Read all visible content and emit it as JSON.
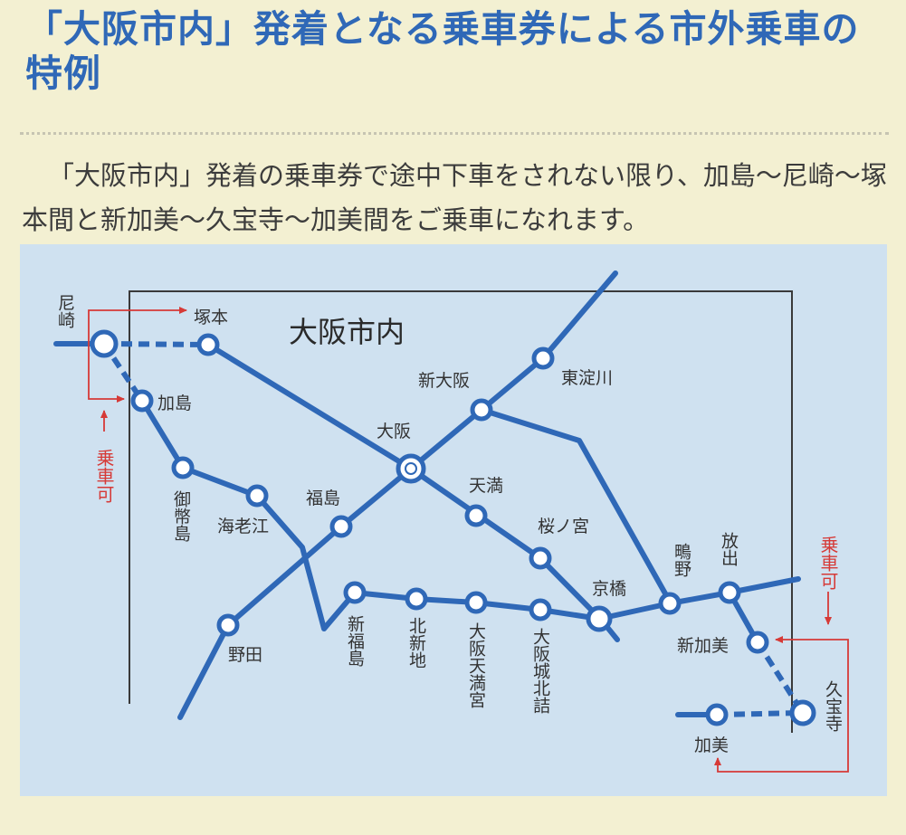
{
  "page": {
    "title": "「大阪市内」発着となる乗車券による市外乗車の特例",
    "intro": "「大阪市内」発着の乗車券で途中下車をされない限り、加島～尼崎～塚本間と新加美～久宝寺～加美間をご乗車になれます。"
  },
  "map": {
    "area_label": "大阪市内",
    "boarding_note": "乗車可",
    "colors": {
      "line": "#2f68b7",
      "station_fill": "#ffffff",
      "arrow": "#d63a37",
      "boundary": "#3a3a3a",
      "panel": "#cfe1f0"
    },
    "stations": {
      "amagasaki": "尼崎",
      "tsukamoto": "塚本",
      "kashima": "加島",
      "mitejima": "御幣島",
      "ebie": "海老江",
      "fukushima": "福島",
      "noda": "野田",
      "osaka": "大阪",
      "shin_osaka": "新大阪",
      "higashi_yodogawa": "東淀川",
      "temma": "天満",
      "sakuranomiya": "桜ノ宮",
      "kyobashi": "京橋",
      "shigino": "鴫野",
      "hanaten": "放出",
      "shin_kami": "新加美",
      "kyuhoji": "久宝寺",
      "kami": "加美",
      "shin_fukushima": "新福島",
      "kitashinchi": "北新地",
      "osakatemmangu": "大阪天満宮",
      "osakajokitazume": "大阪城北詰"
    }
  }
}
